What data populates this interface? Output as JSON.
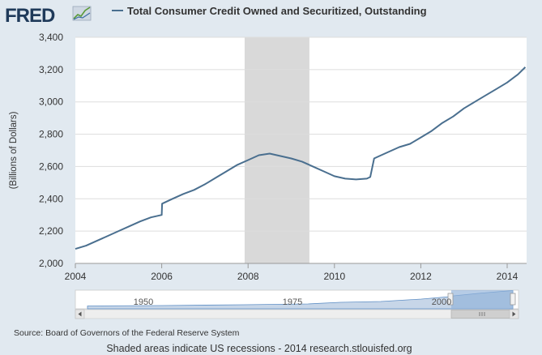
{
  "header": {
    "logo_text": "FRED",
    "logo_icon": "line-graph-icon",
    "title": "Total Consumer Credit Owned and Securitized, Outstanding"
  },
  "colors": {
    "series": "#4a6f8f",
    "recession": "#d9d9d9",
    "plot_background": "#ffffff",
    "grid": "#dddddd",
    "page_background": "#e1e9f0",
    "navigator_fill": "#8fb0d8",
    "logo": "#1f3a5a"
  },
  "chart_data": {
    "type": "line",
    "title": "Total Consumer Credit Owned and Securitized, Outstanding",
    "ylabel": "(Billions of Dollars)",
    "xlabel": "",
    "xlim": [
      2004.0,
      2014.45
    ],
    "ylim": [
      2000,
      3400
    ],
    "x_ticks": [
      "2004",
      "2006",
      "2008",
      "2010",
      "2012",
      "2014"
    ],
    "y_ticks": [
      "2,000",
      "2,200",
      "2,400",
      "2,600",
      "2,800",
      "3,000",
      "3,200",
      "3,400"
    ],
    "grid": true,
    "legend": "top",
    "recessions": [
      [
        2007.92,
        2009.42
      ]
    ],
    "series": [
      {
        "name": "Total Consumer Credit Owned and Securitized, Outstanding",
        "x": [
          2004.0,
          2004.25,
          2004.5,
          2004.75,
          2005.0,
          2005.25,
          2005.5,
          2005.75,
          2006.0,
          2006.01,
          2006.25,
          2006.5,
          2006.75,
          2007.0,
          2007.25,
          2007.5,
          2007.75,
          2008.0,
          2008.25,
          2008.5,
          2008.75,
          2009.0,
          2009.25,
          2009.5,
          2009.75,
          2010.0,
          2010.25,
          2010.5,
          2010.75,
          2010.83,
          2010.92,
          2011.0,
          2011.25,
          2011.5,
          2011.75,
          2012.0,
          2012.25,
          2012.5,
          2012.75,
          2013.0,
          2013.25,
          2013.5,
          2013.75,
          2014.0,
          2014.25,
          2014.42
        ],
        "values": [
          2090,
          2110,
          2140,
          2170,
          2200,
          2230,
          2260,
          2285,
          2300,
          2370,
          2400,
          2430,
          2455,
          2490,
          2530,
          2570,
          2610,
          2640,
          2670,
          2680,
          2665,
          2650,
          2630,
          2600,
          2570,
          2540,
          2525,
          2520,
          2525,
          2535,
          2650,
          2660,
          2690,
          2720,
          2740,
          2780,
          2820,
          2870,
          2910,
          2960,
          3000,
          3040,
          3080,
          3120,
          3170,
          3215
        ]
      }
    ]
  },
  "navigator": {
    "labels": [
      "1950",
      "1975",
      "2000"
    ],
    "scroll_left_icon": "chevron-left-icon",
    "scroll_right_icon": "chevron-right-icon",
    "grip_icon": "grip-icon"
  },
  "footer": {
    "source": "Source: Board of Governors of the Federal Reserve System",
    "note": "Shaded areas indicate US recessions - 2014 research.stlouisfed.org"
  }
}
